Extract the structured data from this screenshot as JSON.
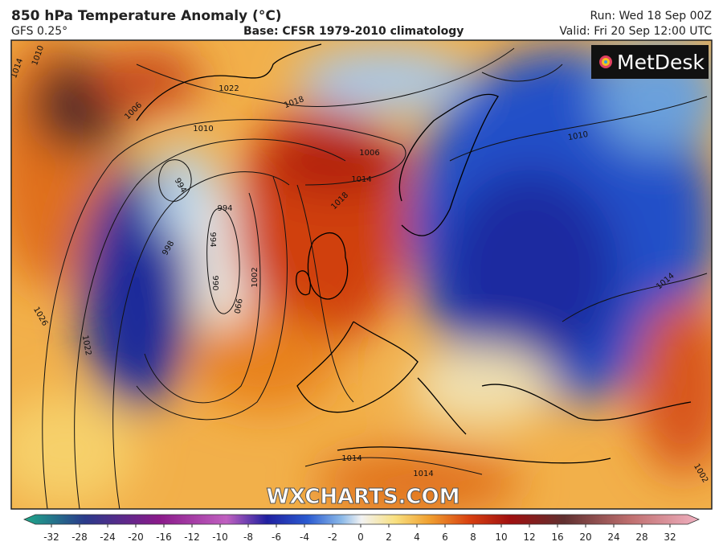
{
  "header": {
    "title": "850 hPa Temperature Anomaly (°C)",
    "model": "GFS 0.25°",
    "base": "Base: CFSR 1979-2010 climatology",
    "run": "Run: Wed 18 Sep 00Z",
    "valid": "Valid: Fri 20 Sep 12:00 UTC"
  },
  "logo": "MetDesk",
  "watermark": "WXCHARTS.COM",
  "isobar_labels": [
    "1014",
    "1010",
    "1006",
    "1022",
    "1018",
    "1010",
    "994",
    "1006",
    "1014",
    "1018",
    "994",
    "998",
    "994",
    "990",
    "990",
    "1002",
    "1026",
    "1022",
    "1010",
    "1014",
    "1014",
    "1014",
    "1002"
  ],
  "colorbar": {
    "ticks": [
      -32,
      -28,
      -24,
      -20,
      -16,
      -12,
      -10,
      -8,
      -6,
      -4,
      -2,
      0,
      2,
      4,
      6,
      8,
      10,
      12,
      16,
      20,
      24,
      28,
      32
    ]
  }
}
